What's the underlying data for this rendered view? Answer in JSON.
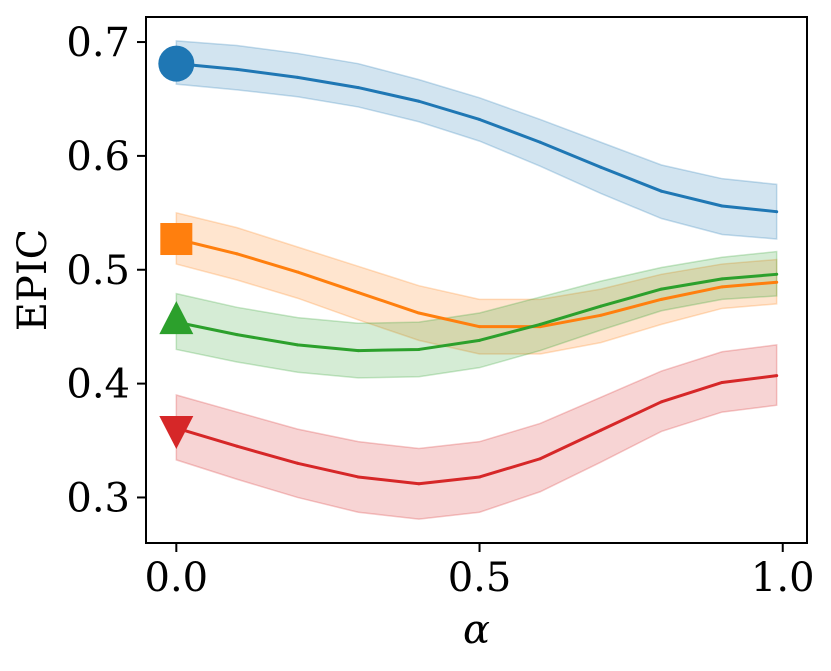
{
  "chart_data": {
    "type": "line",
    "title": "",
    "xlabel": "α",
    "ylabel": "EPIC",
    "xlim": [
      -0.05,
      1.04
    ],
    "ylim": [
      0.26,
      0.722
    ],
    "xticks": [
      0.0,
      0.5,
      1.0
    ],
    "xtick_labels": [
      "0.0",
      "0.5",
      "1.0"
    ],
    "yticks": [
      0.3,
      0.4,
      0.5,
      0.6,
      0.7
    ],
    "ytick_labels": [
      "0.3",
      "0.4",
      "0.5",
      "0.6",
      "0.7"
    ],
    "grid": false,
    "legend": "none",
    "x": [
      0.0,
      0.1,
      0.2,
      0.3,
      0.4,
      0.5,
      0.6,
      0.7,
      0.8,
      0.9,
      0.99
    ],
    "series": [
      {
        "name": "circle",
        "color": "#1f77b4",
        "marker": "circle",
        "values": [
          0.681,
          0.676,
          0.669,
          0.66,
          0.648,
          0.632,
          0.612,
          0.59,
          0.569,
          0.556,
          0.551
        ],
        "lower": [
          0.663,
          0.658,
          0.652,
          0.643,
          0.63,
          0.613,
          0.591,
          0.567,
          0.545,
          0.531,
          0.527
        ],
        "upper": [
          0.701,
          0.697,
          0.69,
          0.681,
          0.667,
          0.651,
          0.632,
          0.612,
          0.592,
          0.58,
          0.575
        ]
      },
      {
        "name": "square",
        "color": "#ff7f0e",
        "marker": "square",
        "values": [
          0.527,
          0.514,
          0.498,
          0.48,
          0.462,
          0.45,
          0.45,
          0.46,
          0.474,
          0.485,
          0.489
        ],
        "lower": [
          0.505,
          0.491,
          0.475,
          0.456,
          0.438,
          0.426,
          0.426,
          0.436,
          0.452,
          0.466,
          0.47
        ],
        "upper": [
          0.55,
          0.537,
          0.52,
          0.503,
          0.486,
          0.474,
          0.474,
          0.483,
          0.496,
          0.505,
          0.509
        ]
      },
      {
        "name": "triangle-up",
        "color": "#2ca02c",
        "marker": "triangle-up",
        "values": [
          0.454,
          0.443,
          0.434,
          0.429,
          0.43,
          0.438,
          0.452,
          0.468,
          0.483,
          0.492,
          0.496
        ],
        "lower": [
          0.43,
          0.419,
          0.41,
          0.405,
          0.406,
          0.414,
          0.429,
          0.447,
          0.464,
          0.474,
          0.477
        ],
        "upper": [
          0.479,
          0.467,
          0.458,
          0.453,
          0.454,
          0.462,
          0.476,
          0.49,
          0.502,
          0.511,
          0.516
        ]
      },
      {
        "name": "triangle-down",
        "color": "#d62728",
        "marker": "triangle-down",
        "values": [
          0.361,
          0.345,
          0.33,
          0.318,
          0.312,
          0.318,
          0.334,
          0.359,
          0.384,
          0.401,
          0.407
        ],
        "lower": [
          0.333,
          0.316,
          0.3,
          0.287,
          0.281,
          0.287,
          0.305,
          0.331,
          0.358,
          0.375,
          0.381
        ],
        "upper": [
          0.39,
          0.375,
          0.36,
          0.349,
          0.343,
          0.349,
          0.365,
          0.388,
          0.411,
          0.428,
          0.434
        ]
      }
    ]
  }
}
